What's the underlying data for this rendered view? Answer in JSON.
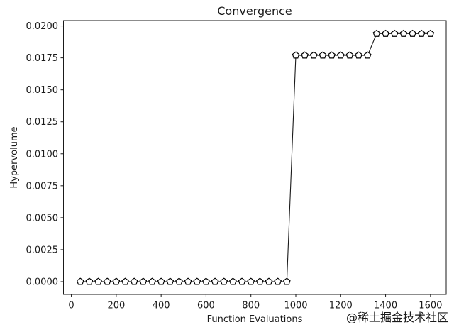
{
  "chart_data": {
    "type": "line",
    "title": "Convergence",
    "xlabel": "Function Evaluations",
    "ylabel": "Hypervolume",
    "grid": false,
    "legend": "none",
    "background": "#ffffff",
    "axis_color": "#1a1a1a",
    "xlim": [
      -35,
      1670
    ],
    "ylim": [
      -0.001,
      0.02042
    ],
    "x_ticks": [
      0,
      200,
      400,
      600,
      800,
      1000,
      1200,
      1400,
      1600
    ],
    "x_tick_labels": [
      "0",
      "200",
      "400",
      "600",
      "800",
      "1000",
      "1200",
      "1400",
      "1600"
    ],
    "y_ticks": [
      0.0,
      0.0025,
      0.005,
      0.0075,
      0.01,
      0.0125,
      0.015,
      0.0175,
      0.02
    ],
    "y_tick_labels": [
      "0.0000",
      "0.0025",
      "0.0050",
      "0.0075",
      "0.0100",
      "0.0125",
      "0.0150",
      "0.0175",
      "0.0200"
    ],
    "series": [
      {
        "name": "Hypervolume",
        "marker": "pentagon",
        "line_color": "#1a1a1a",
        "marker_face": "#ffffff",
        "marker_edge": "#000000",
        "x": [
          40,
          80,
          120,
          160,
          200,
          240,
          280,
          320,
          360,
          400,
          440,
          480,
          520,
          560,
          600,
          640,
          680,
          720,
          760,
          800,
          840,
          880,
          920,
          960,
          1000,
          1040,
          1080,
          1120,
          1160,
          1200,
          1240,
          1280,
          1320,
          1360,
          1400,
          1440,
          1480,
          1520,
          1560,
          1600
        ],
        "y": [
          0.0,
          0.0,
          0.0,
          0.0,
          0.0,
          0.0,
          0.0,
          0.0,
          0.0,
          0.0,
          0.0,
          0.0,
          0.0,
          0.0,
          0.0,
          0.0,
          0.0,
          0.0,
          0.0,
          0.0,
          0.0,
          0.0,
          0.0,
          0.0,
          0.0177,
          0.0177,
          0.0177,
          0.0177,
          0.0177,
          0.0177,
          0.0177,
          0.0177,
          0.0177,
          0.0194,
          0.0194,
          0.0194,
          0.0194,
          0.0194,
          0.0194,
          0.0194
        ]
      }
    ]
  },
  "watermark": {
    "text": "@稀土掘金技术社区",
    "color": "#b9b9b9"
  }
}
